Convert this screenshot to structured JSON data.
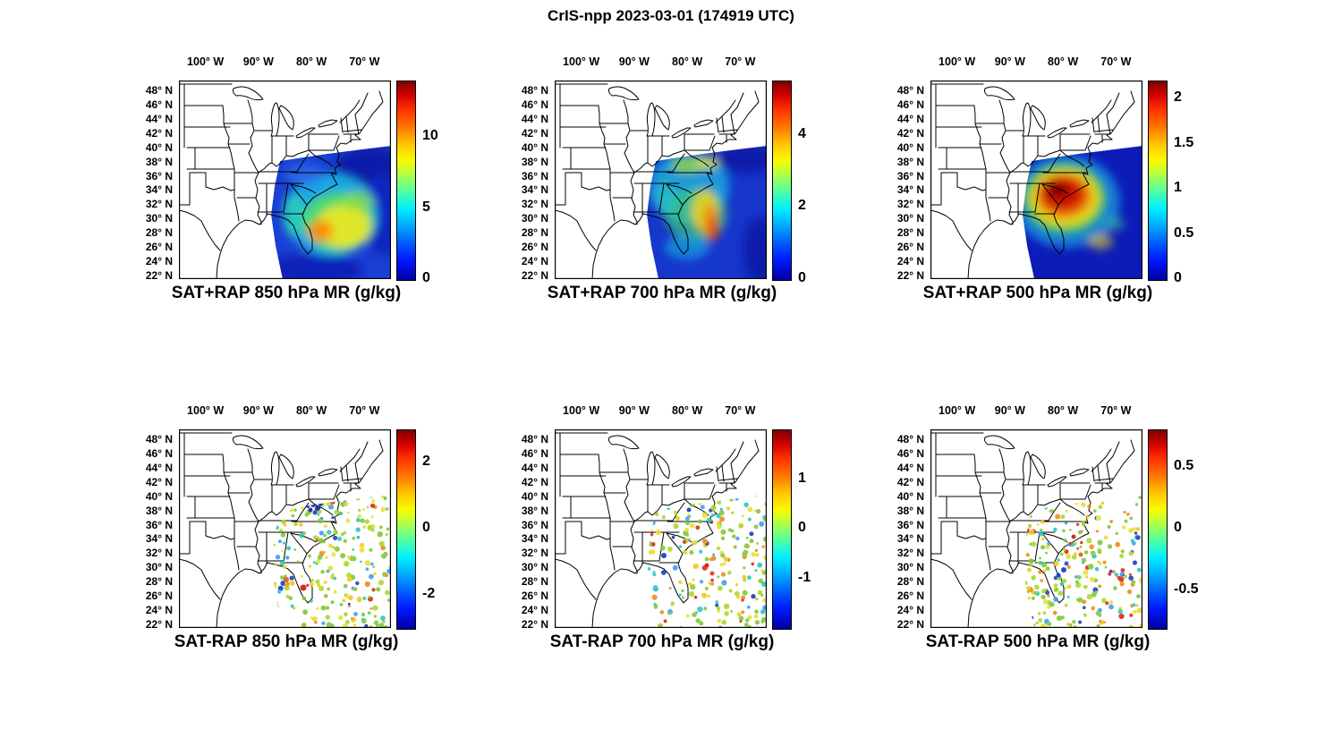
{
  "figure_title": "CrIS-npp 2023-03-01 (174919 UTC)",
  "axes": {
    "lon_ticks": [
      {
        "value": 100,
        "label": "100° W"
      },
      {
        "value": 90,
        "label": "90° W"
      },
      {
        "value": 80,
        "label": "80° W"
      },
      {
        "value": 70,
        "label": "70° W"
      }
    ],
    "lat_ticks": [
      {
        "value": 48,
        "label": "48° N"
      },
      {
        "value": 46,
        "label": "46° N"
      },
      {
        "value": 44,
        "label": "44° N"
      },
      {
        "value": 42,
        "label": "42° N"
      },
      {
        "value": 40,
        "label": "40° N"
      },
      {
        "value": 38,
        "label": "38° N"
      },
      {
        "value": 36,
        "label": "36° N"
      },
      {
        "value": 34,
        "label": "34° N"
      },
      {
        "value": 32,
        "label": "32° N"
      },
      {
        "value": 30,
        "label": "30° N"
      },
      {
        "value": 28,
        "label": "28° N"
      },
      {
        "value": 26,
        "label": "26° N"
      },
      {
        "value": 24,
        "label": "24° N"
      },
      {
        "value": 22,
        "label": "22° N"
      }
    ]
  },
  "chart_data": [
    {
      "type": "heatmap",
      "panel": "top-left",
      "title": "SAT+RAP 850 hPa MR (g/kg)",
      "product": "SAT+RAP",
      "level_hPa": 850,
      "variable": "mixing ratio",
      "units": "g/kg",
      "colormap": "jet",
      "colorbar": {
        "min": 0,
        "max": 14,
        "ticks": [
          {
            "value": 0,
            "label": "0"
          },
          {
            "value": 5,
            "label": "5"
          },
          {
            "value": 10,
            "label": "10"
          }
        ]
      },
      "lon_range_deg_w": [
        105,
        65
      ],
      "lat_range_deg_n": [
        21.5,
        49.5
      ],
      "data_description": "CrIS satellite swath over the southeastern US and western Atlantic; broad yellow-orange maximum (~6-9 g/kg) arcing from Florida/Georgia coast northeastward offshore, dark blue minima (<2 g/kg) to the north and far southeast of the swath."
    },
    {
      "type": "heatmap",
      "panel": "top-center",
      "title": "SAT+RAP 700 hPa MR (g/kg)",
      "product": "SAT+RAP",
      "level_hPa": 700,
      "variable": "mixing ratio",
      "units": "g/kg",
      "colormap": "jet",
      "colorbar": {
        "min": 0,
        "max": 5.5,
        "ticks": [
          {
            "value": 0,
            "label": "0"
          },
          {
            "value": 2,
            "label": "2"
          },
          {
            "value": 4,
            "label": "4"
          }
        ]
      },
      "lon_range_deg_w": [
        105,
        65
      ],
      "lat_range_deg_n": [
        21.5,
        49.5
      ],
      "data_description": "Mostly blue/cyan (0.5-2 g/kg) swath with narrow orange-red streaks (3-4.5 g/kg) off the Carolina-Georgia coast and scattered green-yellow patches near the northern swath edge."
    },
    {
      "type": "heatmap",
      "panel": "top-right",
      "title": "SAT+RAP 500 hPa MR (g/kg)",
      "product": "SAT+RAP",
      "level_hPa": 500,
      "variable": "mixing ratio",
      "units": "g/kg",
      "colormap": "jet",
      "colorbar": {
        "min": 0,
        "max": 2.2,
        "ticks": [
          {
            "value": 0,
            "label": "0"
          },
          {
            "value": 0.5,
            "label": "0.5"
          },
          {
            "value": 1,
            "label": "1"
          },
          {
            "value": 1.5,
            "label": "1.5"
          },
          {
            "value": 2,
            "label": "2"
          }
        ]
      },
      "lon_range_deg_w": [
        105,
        65
      ],
      "lat_range_deg_n": [
        21.5,
        49.5
      ],
      "data_description": "Large dark-red maximum (~2+ g/kg) centered over Georgia/South Carolina, ringed by orange-yellow then green-cyan, with deep blue (<0.3 g/kg) over the rest of the swath."
    },
    {
      "type": "heatmap",
      "panel": "bottom-left",
      "title": "SAT-RAP 850 hPa MR (g/kg)",
      "product": "SAT-RAP",
      "level_hPa": 850,
      "variable": "mixing ratio difference",
      "units": "g/kg",
      "colormap": "jet",
      "colorbar": {
        "min": -3,
        "max": 3,
        "ticks": [
          {
            "value": -2,
            "label": "-2"
          },
          {
            "value": 0,
            "label": "0"
          },
          {
            "value": 2,
            "label": "2"
          }
        ]
      },
      "lon_range_deg_w": [
        105,
        65
      ],
      "lat_range_deg_n": [
        21.5,
        49.5
      ],
      "data_description": "Speckled small differences mostly -0.5 to +0.5 g/kg (green/yellow) across the swath; cluster of dark blue (~-3) near the North Carolina coast and isolated red (~+3) points near Florida."
    },
    {
      "type": "heatmap",
      "panel": "bottom-center",
      "title": "SAT-RAP 700 hPa MR (g/kg)",
      "product": "SAT-RAP",
      "level_hPa": 700,
      "variable": "mixing ratio difference",
      "units": "g/kg",
      "colormap": "jet",
      "colorbar": {
        "min": -2,
        "max": 2,
        "ticks": [
          {
            "value": -1,
            "label": "-1"
          },
          {
            "value": 0,
            "label": "0"
          },
          {
            "value": 1,
            "label": "1"
          }
        ]
      },
      "lon_range_deg_w": [
        105,
        65
      ],
      "lat_range_deg_n": [
        21.5,
        49.5
      ],
      "data_description": "Speckled differences around -0.3 to +0.3 g/kg with scattered orange/red (~+1.5) and blue (~-1.5) points offshore of the Southeast coast."
    },
    {
      "type": "heatmap",
      "panel": "bottom-right",
      "title": "SAT-RAP 500 hPa MR (g/kg)",
      "product": "SAT-RAP",
      "level_hPa": 500,
      "variable": "mixing ratio difference",
      "units": "g/kg",
      "colormap": "jet",
      "colorbar": {
        "min": -0.8,
        "max": 0.8,
        "ticks": [
          {
            "value": -0.5,
            "label": "-0.5"
          },
          {
            "value": 0,
            "label": "0"
          },
          {
            "value": 0.5,
            "label": "0.5"
          }
        ]
      },
      "lon_range_deg_w": [
        105,
        65
      ],
      "lat_range_deg_n": [
        21.5,
        49.5
      ],
      "data_description": "Speckled differences around ±0.2 g/kg with more frequent orange/red streaks (~+0.7) along the coastal swath and a few dark blue (~-0.7) points near the Carolinas and Florida."
    }
  ]
}
